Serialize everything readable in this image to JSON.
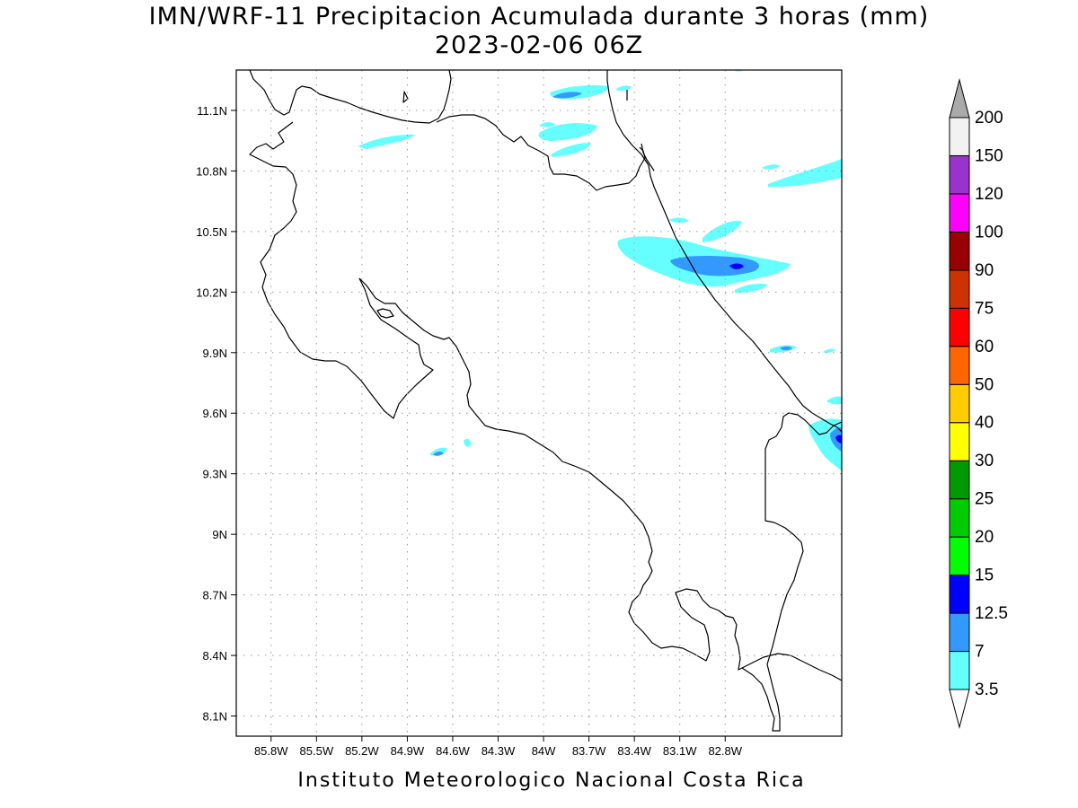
{
  "title": {
    "line1": "IMN/WRF-11 Precipitacion Acumulada durante 3 horas (mm)",
    "line2": "2023-02-06 06Z"
  },
  "footer": "Instituto Meteorologico Nacional Costa Rica",
  "map": {
    "lon_range": [
      -86.03,
      -82.03
    ],
    "lat_range": [
      8.0,
      11.3
    ],
    "lon_ticks": [
      "85.8W",
      "85.5W",
      "85.2W",
      "84.9W",
      "84.6W",
      "84.3W",
      "84W",
      "83.7W",
      "83.4W",
      "83.1W",
      "82.8W"
    ],
    "lon_tick_values": [
      -85.8,
      -85.5,
      -85.2,
      -84.9,
      -84.6,
      -84.3,
      -84.0,
      -83.7,
      -83.4,
      -83.1,
      -82.8
    ],
    "lat_ticks": [
      "11.1N",
      "10.8N",
      "10.5N",
      "10.2N",
      "9.9N",
      "9.6N",
      "9.3N",
      "9N",
      "8.7N",
      "8.4N",
      "8.1N"
    ],
    "lat_tick_values": [
      11.1,
      10.8,
      10.5,
      10.2,
      9.9,
      9.6,
      9.3,
      9.0,
      8.7,
      8.4,
      8.1
    ],
    "grid": "dotted"
  },
  "legend": {
    "labels": [
      "3.5",
      "7",
      "12.5",
      "15",
      "20",
      "25",
      "30",
      "40",
      "50",
      "60",
      "75",
      "90",
      "100",
      "120",
      "150",
      "200"
    ],
    "colors": [
      "#66ffff",
      "#3399ff",
      "#0000ff",
      "#00ff00",
      "#00cc00",
      "#009900",
      "#ffff00",
      "#ffcc00",
      "#ff6600",
      "#ff0000",
      "#cc3300",
      "#990000",
      "#ff00ff",
      "#9933cc",
      "#f2f2f2"
    ],
    "over_color": "#aaaaaa",
    "under_color": "#ffffff"
  }
}
